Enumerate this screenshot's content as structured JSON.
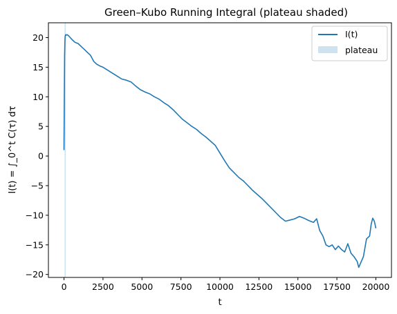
{
  "chart_data": {
    "type": "line",
    "title": "Green–Kubo Running Integral (plateau shaded)",
    "xlabel": "t",
    "ylabel": "I(t) = ∫_0^t C(τ) dτ",
    "xlim": [
      -1000,
      21000
    ],
    "ylim": [
      -20.5,
      22.5
    ],
    "xticks": [
      0,
      2500,
      5000,
      7500,
      10000,
      12500,
      15000,
      17500,
      20000
    ],
    "yticks": [
      -20,
      -15,
      -10,
      -5,
      0,
      5,
      10,
      15,
      20
    ],
    "grid": false,
    "legend_position": "top-right",
    "colors": {
      "line": "#1f77b4",
      "plateau": "#a6cbe3"
    },
    "plateau": {
      "x0": 40,
      "x1": 110,
      "label": "plateau"
    },
    "series": [
      {
        "name": "I(t)",
        "x": [
          0,
          20,
          40,
          60,
          80,
          110,
          150,
          200,
          300,
          400,
          500,
          700,
          900,
          1100,
          1300,
          1500,
          1700,
          1900,
          2100,
          2300,
          2500,
          2800,
          3100,
          3400,
          3700,
          4000,
          4300,
          4600,
          4900,
          5200,
          5500,
          5800,
          6100,
          6400,
          6700,
          7000,
          7300,
          7600,
          7900,
          8200,
          8500,
          8800,
          9100,
          9400,
          9700,
          10000,
          10300,
          10600,
          10900,
          11200,
          11500,
          11800,
          12100,
          12400,
          12700,
          13000,
          13300,
          13600,
          13900,
          14200,
          14500,
          14800,
          15100,
          15400,
          15700,
          16000,
          16200,
          16400,
          16600,
          16800,
          17000,
          17200,
          17400,
          17600,
          17800,
          18000,
          18200,
          18400,
          18600,
          18800,
          18900,
          19000,
          19200,
          19400,
          19600,
          19700,
          19800,
          19900,
          20000
        ],
        "y": [
          1,
          10,
          17,
          19.5,
          20.3,
          20.5,
          20.4,
          20.5,
          20.3,
          20.0,
          19.7,
          19.2,
          19.0,
          18.5,
          18.0,
          17.5,
          17.0,
          16.0,
          15.5,
          15.2,
          15.0,
          14.5,
          14.0,
          13.5,
          13.0,
          12.8,
          12.5,
          11.8,
          11.2,
          10.8,
          10.5,
          10.0,
          9.6,
          9.0,
          8.5,
          7.8,
          7.0,
          6.2,
          5.6,
          5.0,
          4.5,
          3.8,
          3.2,
          2.5,
          1.8,
          0.5,
          -0.8,
          -2.0,
          -2.8,
          -3.6,
          -4.2,
          -5.0,
          -5.8,
          -6.5,
          -7.2,
          -8.0,
          -8.8,
          -9.6,
          -10.4,
          -11.0,
          -10.8,
          -10.6,
          -10.2,
          -10.5,
          -10.9,
          -11.2,
          -10.6,
          -12.6,
          -13.5,
          -15.0,
          -15.3,
          -15.0,
          -15.8,
          -15.2,
          -15.8,
          -16.2,
          -14.8,
          -16.4,
          -17.0,
          -17.8,
          -18.8,
          -18.2,
          -17.0,
          -14.0,
          -13.5,
          -11.5,
          -10.5,
          -11.0,
          -12.2
        ]
      }
    ]
  }
}
